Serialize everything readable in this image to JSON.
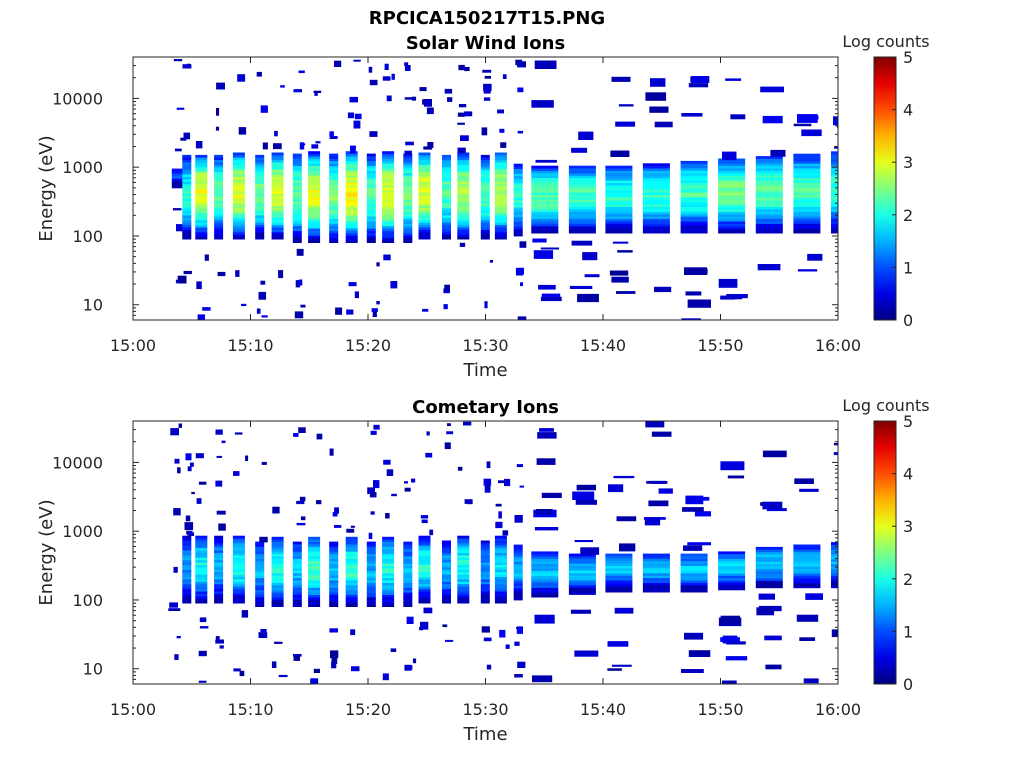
{
  "figure_title": "RPCICA150217T15.PNG",
  "chart_data": [
    {
      "type": "heatmap",
      "title": "Solar Wind Ions",
      "xlabel": "Time",
      "ylabel": "Energy (eV)",
      "xticks": [
        "15:00",
        "15:10",
        "15:20",
        "15:30",
        "15:40",
        "15:50",
        "16:00"
      ],
      "xlim_minutes": [
        0,
        60
      ],
      "yscale": "log",
      "ylim": [
        6,
        40000
      ],
      "yticks": [
        10,
        100,
        1000,
        10000
      ],
      "ytick_labels": [
        "10",
        "100",
        "1000",
        "10000"
      ],
      "colorbar": {
        "label": "Log counts",
        "range": [
          0,
          5
        ],
        "ticks": [
          "0",
          "1",
          "2",
          "3",
          "4",
          "5"
        ],
        "colormap": "jet"
      },
      "scans": [
        {
          "t": 3.3,
          "lo": 500,
          "hi": 900,
          "peak": 1.0
        },
        {
          "t": 4.2,
          "lo": 90,
          "hi": 1400,
          "peak": 2.0
        },
        {
          "t": 5.3,
          "lo": 90,
          "hi": 1500,
          "peak": 3.0
        },
        {
          "t": 6.9,
          "lo": 90,
          "hi": 1400,
          "peak": 2.3
        },
        {
          "t": 8.5,
          "lo": 90,
          "hi": 1600,
          "peak": 3.0
        },
        {
          "t": 10.4,
          "lo": 90,
          "hi": 1500,
          "peak": 2.4
        },
        {
          "t": 11.8,
          "lo": 90,
          "hi": 1600,
          "peak": 3.0
        },
        {
          "t": 13.6,
          "lo": 80,
          "hi": 1500,
          "peak": 2.4
        },
        {
          "t": 14.9,
          "lo": 80,
          "hi": 1600,
          "peak": 3.0
        },
        {
          "t": 16.7,
          "lo": 80,
          "hi": 1500,
          "peak": 2.5
        },
        {
          "t": 18.1,
          "lo": 80,
          "hi": 1600,
          "peak": 3.1
        },
        {
          "t": 19.9,
          "lo": 80,
          "hi": 1500,
          "peak": 2.3
        },
        {
          "t": 21.2,
          "lo": 80,
          "hi": 1600,
          "peak": 3.0
        },
        {
          "t": 23.0,
          "lo": 80,
          "hi": 1500,
          "peak": 2.4
        },
        {
          "t": 24.3,
          "lo": 90,
          "hi": 1600,
          "peak": 3.0
        },
        {
          "t": 26.3,
          "lo": 90,
          "hi": 1500,
          "peak": 2.3
        },
        {
          "t": 27.6,
          "lo": 90,
          "hi": 1600,
          "peak": 2.8
        },
        {
          "t": 29.6,
          "lo": 90,
          "hi": 1400,
          "peak": 2.3
        },
        {
          "t": 30.8,
          "lo": 90,
          "hi": 1600,
          "peak": 2.8
        },
        {
          "t": 32.4,
          "lo": 100,
          "hi": 1100,
          "peak": 2.1
        },
        {
          "t": 33.9,
          "lo": 110,
          "hi": 1000,
          "peak": 2.3
        },
        {
          "t": 37.1,
          "lo": 110,
          "hi": 1000,
          "peak": 2.2
        },
        {
          "t": 40.2,
          "lo": 110,
          "hi": 1000,
          "peak": 2.1
        },
        {
          "t": 43.4,
          "lo": 110,
          "hi": 1100,
          "peak": 2.1
        },
        {
          "t": 46.6,
          "lo": 110,
          "hi": 1200,
          "peak": 2.2
        },
        {
          "t": 49.8,
          "lo": 110,
          "hi": 1300,
          "peak": 2.4
        },
        {
          "t": 53.0,
          "lo": 110,
          "hi": 1400,
          "peak": 2.3
        },
        {
          "t": 56.2,
          "lo": 110,
          "hi": 1500,
          "peak": 2.2
        },
        {
          "t": 59.4,
          "lo": 110,
          "hi": 1600,
          "peak": 2.1
        }
      ]
    },
    {
      "type": "heatmap",
      "title": "Cometary Ions",
      "xlabel": "Time",
      "ylabel": "Energy (eV)",
      "xticks": [
        "15:00",
        "15:10",
        "15:20",
        "15:30",
        "15:40",
        "15:50",
        "16:00"
      ],
      "xlim_minutes": [
        0,
        60
      ],
      "yscale": "log",
      "ylim": [
        6,
        40000
      ],
      "yticks": [
        10,
        100,
        1000,
        10000
      ],
      "ytick_labels": [
        "10",
        "100",
        "1000",
        "10000"
      ],
      "colorbar": {
        "label": "Log counts",
        "range": [
          0,
          5
        ],
        "ticks": [
          "0",
          "1",
          "2",
          "3",
          "4",
          "5"
        ],
        "colormap": "jet"
      },
      "scans": [
        {
          "t": 3.0,
          "lo": 70,
          "hi": 75,
          "peak": 0.6
        },
        {
          "t": 4.2,
          "lo": 90,
          "hi": 800,
          "peak": 1.4
        },
        {
          "t": 5.3,
          "lo": 90,
          "hi": 800,
          "peak": 1.9
        },
        {
          "t": 6.9,
          "lo": 90,
          "hi": 800,
          "peak": 1.5
        },
        {
          "t": 8.5,
          "lo": 90,
          "hi": 800,
          "peak": 2.0
        },
        {
          "t": 10.4,
          "lo": 80,
          "hi": 700,
          "peak": 1.5
        },
        {
          "t": 11.8,
          "lo": 80,
          "hi": 800,
          "peak": 2.0
        },
        {
          "t": 13.6,
          "lo": 80,
          "hi": 700,
          "peak": 1.6
        },
        {
          "t": 14.9,
          "lo": 80,
          "hi": 800,
          "peak": 2.2
        },
        {
          "t": 16.7,
          "lo": 80,
          "hi": 700,
          "peak": 1.6
        },
        {
          "t": 18.1,
          "lo": 80,
          "hi": 800,
          "peak": 2.1
        },
        {
          "t": 19.9,
          "lo": 80,
          "hi": 700,
          "peak": 1.5
        },
        {
          "t": 21.2,
          "lo": 80,
          "hi": 800,
          "peak": 2.0
        },
        {
          "t": 23.0,
          "lo": 80,
          "hi": 700,
          "peak": 1.5
        },
        {
          "t": 24.3,
          "lo": 90,
          "hi": 800,
          "peak": 2.0
        },
        {
          "t": 26.3,
          "lo": 90,
          "hi": 700,
          "peak": 1.5
        },
        {
          "t": 27.6,
          "lo": 90,
          "hi": 800,
          "peak": 2.0
        },
        {
          "t": 29.6,
          "lo": 90,
          "hi": 700,
          "peak": 1.4
        },
        {
          "t": 30.8,
          "lo": 90,
          "hi": 800,
          "peak": 1.8
        },
        {
          "t": 32.4,
          "lo": 100,
          "hi": 600,
          "peak": 1.5
        },
        {
          "t": 33.9,
          "lo": 110,
          "hi": 500,
          "peak": 1.6
        },
        {
          "t": 37.1,
          "lo": 120,
          "hi": 450,
          "peak": 1.6
        },
        {
          "t": 40.2,
          "lo": 130,
          "hi": 450,
          "peak": 1.5
        },
        {
          "t": 43.4,
          "lo": 130,
          "hi": 450,
          "peak": 1.5
        },
        {
          "t": 46.6,
          "lo": 130,
          "hi": 450,
          "peak": 1.6
        },
        {
          "t": 49.8,
          "lo": 140,
          "hi": 500,
          "peak": 1.6
        },
        {
          "t": 53.0,
          "lo": 150,
          "hi": 550,
          "peak": 1.7
        },
        {
          "t": 56.2,
          "lo": 150,
          "hi": 600,
          "peak": 1.6
        },
        {
          "t": 59.4,
          "lo": 150,
          "hi": 650,
          "peak": 1.5
        }
      ]
    }
  ]
}
